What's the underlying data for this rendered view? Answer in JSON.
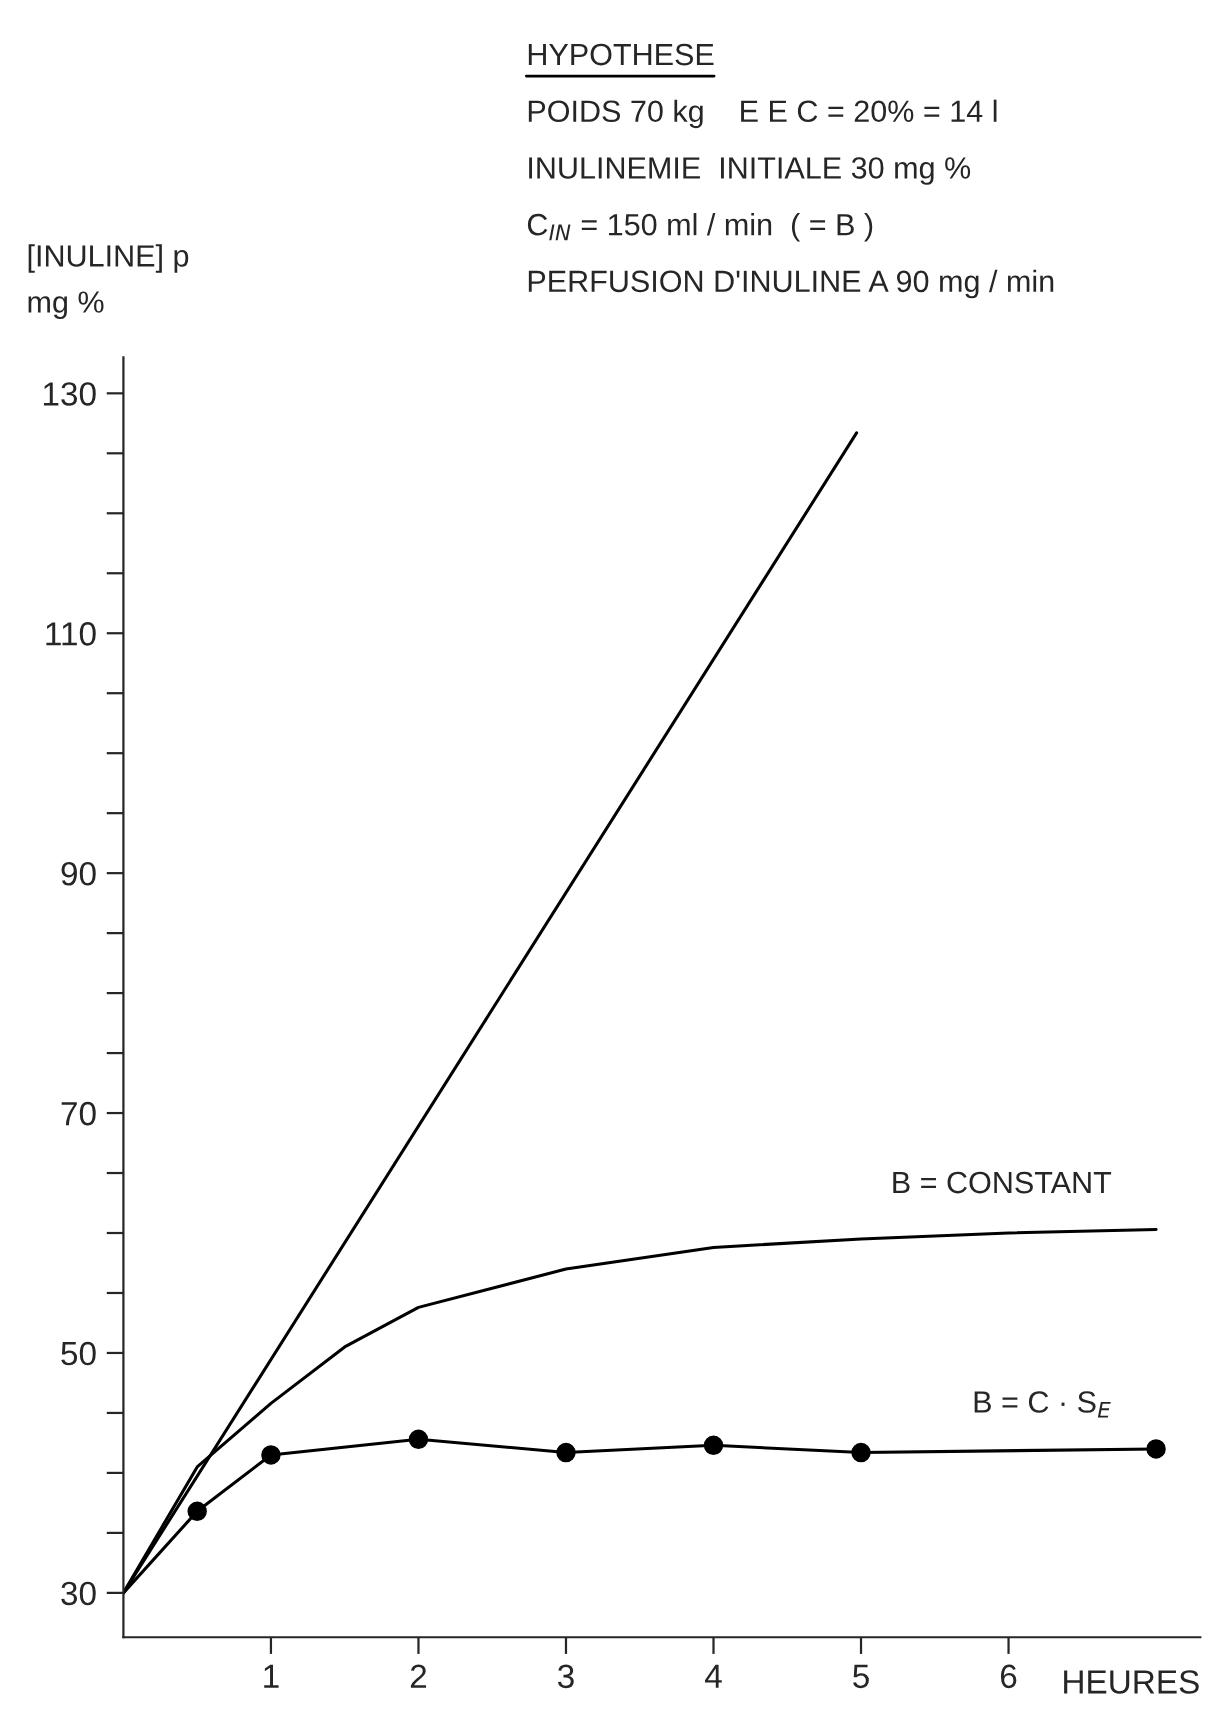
{
  "chart_data": {
    "type": "line",
    "xlabel": "HEURES",
    "ylabel": "[INULINE] p\nmg %",
    "annotations": [
      "HYPOTHESE",
      "POIDS 70 kg    E E C = 20% = 14 l",
      "INULINEMIE  INITIALE 30 mg %",
      "C$_{IN}$ = 150 ml / min  ( = B )",
      "PERFUSION D'INULINE A 90 mg / min"
    ],
    "series": [
      {
        "color": "#000000",
        "x": [
          0,
          4.97
        ],
        "values": [
          30,
          126.7
        ]
      },
      {
        "name": "B = CONSTANT",
        "color": "#000000",
        "x": [
          0,
          0.5,
          1,
          1.5,
          2,
          3,
          4,
          5,
          6,
          7
        ],
        "values": [
          30,
          40.5,
          45.8,
          50.5,
          53.8,
          57,
          58.8,
          59.5,
          60,
          60.3
        ]
      },
      {
        "name": "B = C · S$_{E}$",
        "color": "#000000",
        "marker": "circle",
        "x": [
          0,
          0.5,
          1,
          2,
          3,
          4,
          5,
          7
        ],
        "values": [
          30,
          36.8,
          41.5,
          42.8,
          41.7,
          42.3,
          41.7,
          42
        ]
      }
    ],
    "xlim": [
      0,
      7.3
    ],
    "ylim": [
      26.3,
      133
    ],
    "xticks": [
      1,
      2,
      3,
      4,
      5,
      6
    ],
    "yticks": [
      30,
      {
        "value": 35,
        "label": null
      },
      {
        "value": 40,
        "label": null
      },
      {
        "value": 45,
        "label": null
      },
      50,
      {
        "value": 55,
        "label": null
      },
      {
        "value": 60,
        "label": null
      },
      {
        "value": 65,
        "label": null
      },
      70,
      {
        "value": 75,
        "label": null
      },
      {
        "value": 80,
        "label": null
      },
      {
        "value": 85,
        "label": null
      },
      90,
      {
        "value": 95,
        "label": null
      },
      {
        "value": 100,
        "label": null
      },
      {
        "value": 105,
        "label": null
      },
      110,
      {
        "value": 115,
        "label": null
      },
      {
        "value": 120,
        "label": null
      },
      {
        "value": 125,
        "label": null
      },
      130
    ],
    "grid": false,
    "legend": false
  }
}
